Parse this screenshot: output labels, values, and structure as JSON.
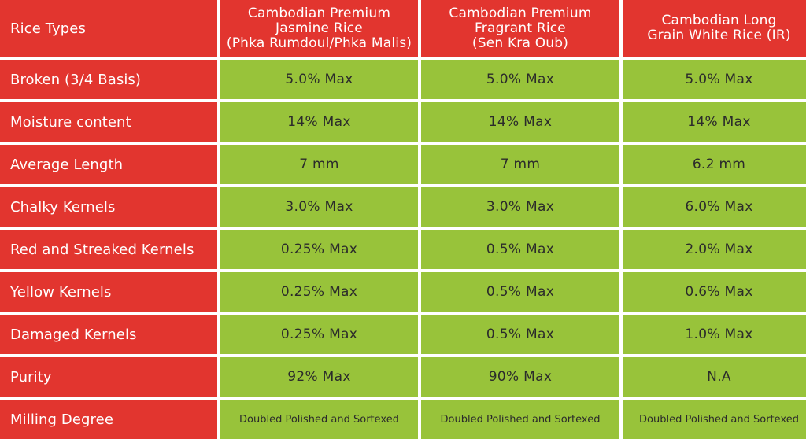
{
  "header": {
    "row_label": "Rice Types",
    "columns": [
      {
        "lines": [
          "Cambodian Premium",
          "Jasmine  Rice",
          "(Phka Rumdoul/Phka Malis)"
        ]
      },
      {
        "lines": [
          "Cambodian Premium",
          "Fragrant Rice",
          "(Sen Kra Oub)"
        ]
      },
      {
        "lines": [
          "Cambodian Long",
          "Grain White Rice (IR)"
        ]
      }
    ]
  },
  "rows": [
    {
      "label": "Broken (3/4 Basis)",
      "values": [
        "5.0% Max",
        "5.0% Max",
        "5.0% Max"
      ]
    },
    {
      "label": "Moisture content",
      "values": [
        "14% Max",
        "14% Max",
        "14% Max"
      ]
    },
    {
      "label": "Average Length",
      "values": [
        "7 mm",
        "7 mm",
        "6.2 mm"
      ]
    },
    {
      "label": "Chalky Kernels",
      "values": [
        "3.0% Max",
        "3.0% Max",
        "6.0% Max"
      ]
    },
    {
      "label": "Red and Streaked Kernels",
      "values": [
        "0.25% Max",
        "0.5% Max",
        "2.0% Max"
      ]
    },
    {
      "label": "Yellow Kernels",
      "values": [
        "0.25% Max",
        "0.5% Max",
        "0.6% Max"
      ]
    },
    {
      "label": "Damaged Kernels",
      "values": [
        "0.25% Max",
        "0.5% Max",
        "1.0% Max"
      ]
    },
    {
      "label": "Purity",
      "values": [
        "92% Max",
        "90% Max",
        "N.A"
      ]
    },
    {
      "label": "Milling Degree",
      "values": [
        "Doubled Polished and Sortexed",
        "Doubled Polished and Sortexed",
        "Doubled Polished and Sortexed"
      ]
    }
  ],
  "colors": {
    "header_and_labels": "#e2352f",
    "value_cells": "#98c33a",
    "label_text": "#ffffff",
    "value_text": "#2b2b2b"
  }
}
